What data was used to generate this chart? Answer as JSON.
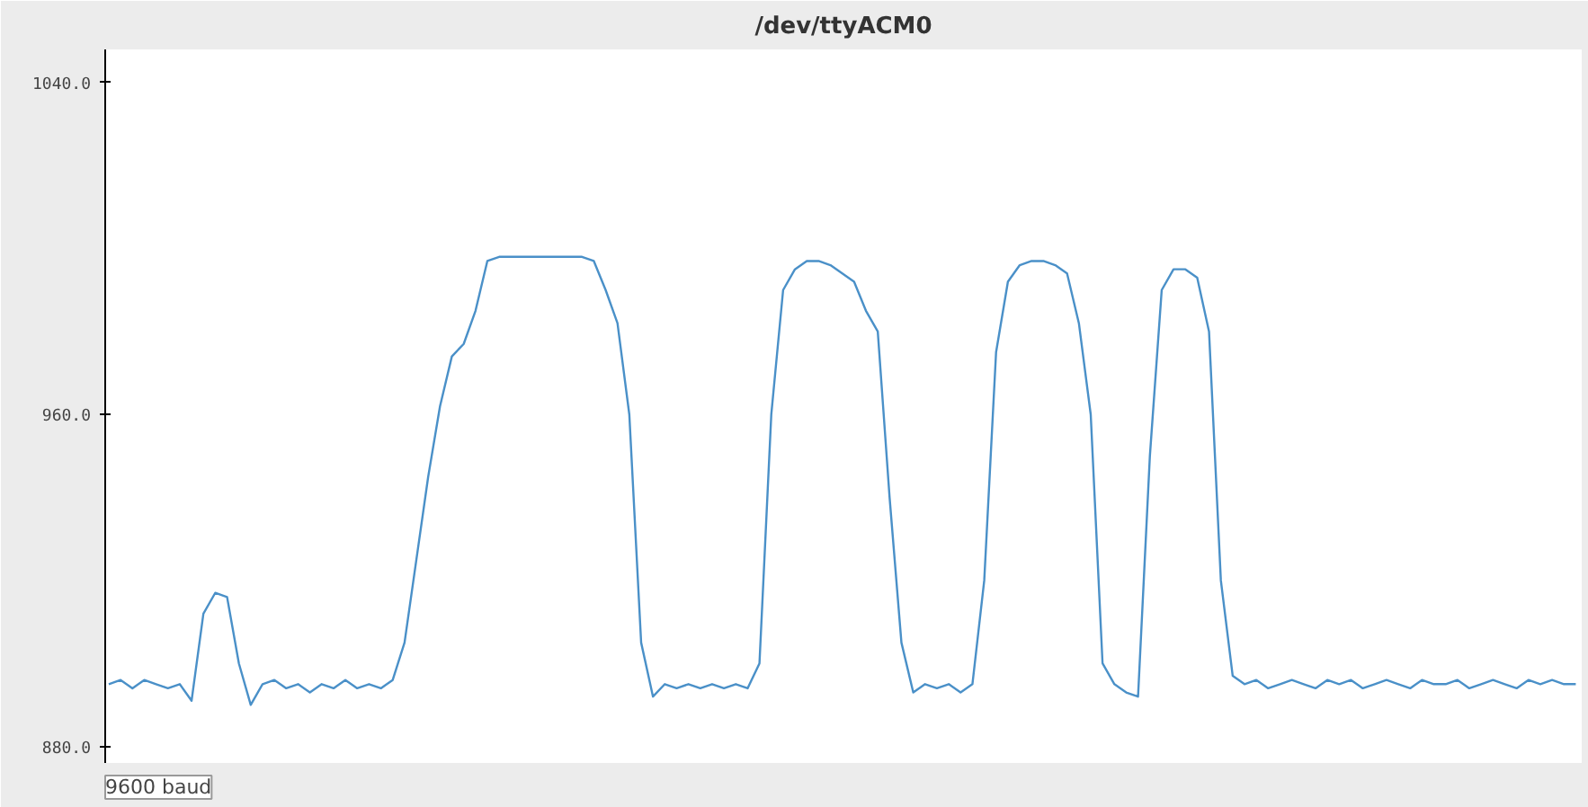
{
  "chart_data": {
    "type": "line",
    "title": "/dev/ttyACM0",
    "categories": [
      null,
      null,
      null,
      null,
      null,
      null,
      null,
      null,
      null,
      null,
      null,
      null,
      null,
      null,
      null,
      null,
      null,
      null,
      null,
      null,
      null,
      null,
      null,
      null,
      null,
      null,
      null,
      null,
      null,
      null,
      null,
      null,
      null,
      null,
      null,
      null,
      null,
      null,
      null,
      null,
      null,
      null,
      null,
      null,
      null,
      null,
      null,
      null,
      null,
      null,
      null,
      null,
      null,
      null,
      null,
      null,
      null,
      null,
      null,
      null,
      null,
      null,
      null,
      null,
      null,
      null,
      null,
      null,
      null,
      null,
      null,
      null,
      null,
      null,
      null,
      null,
      null,
      null,
      null,
      null,
      null,
      null,
      null,
      null,
      null,
      null,
      null,
      null,
      null,
      null,
      null,
      null,
      null,
      null,
      null,
      null,
      null,
      null,
      null,
      null,
      null,
      null,
      null,
      null,
      null,
      null,
      null,
      null,
      null,
      null,
      null,
      null,
      null,
      null,
      null,
      null,
      null,
      null,
      null,
      null,
      null,
      null,
      null,
      null,
      null
    ],
    "series": [
      {
        "color": "#4a90c8",
        "values": [
          895,
          896,
          894,
          896,
          895,
          894,
          895,
          891,
          912,
          917,
          916,
          900,
          890,
          895,
          896,
          894,
          895,
          893,
          895,
          894,
          896,
          894,
          895,
          894,
          896,
          905,
          925,
          945,
          962,
          974,
          977,
          985,
          997,
          998,
          998,
          998,
          998,
          998,
          998,
          998,
          998,
          997,
          990,
          982,
          960,
          905,
          892,
          895,
          894,
          895,
          894,
          895,
          894,
          895,
          894,
          900,
          960,
          990,
          995,
          997,
          997,
          996,
          994,
          992,
          985,
          980,
          940,
          905,
          893,
          895,
          894,
          895,
          893,
          895,
          920,
          975,
          992,
          996,
          997,
          997,
          996,
          994,
          982,
          960,
          900,
          895,
          893,
          892,
          950,
          990,
          995,
          995,
          993,
          980,
          920,
          897,
          895,
          896,
          894,
          895,
          896,
          895,
          894,
          896,
          895,
          896,
          894,
          895,
          896,
          895,
          894,
          896,
          895,
          895,
          896,
          894,
          895,
          896,
          895,
          894,
          896,
          895,
          896,
          895,
          895
        ]
      }
    ],
    "ylim": [
      876,
      1048
    ],
    "yticks": [
      {
        "value": 880,
        "label": "880.0"
      },
      {
        "value": 960,
        "label": "960.0"
      },
      {
        "value": 1040,
        "label": "1040.0"
      }
    ],
    "tick_labels": "y",
    "grid": false,
    "marker": "none",
    "line_style": "solid",
    "annotations": [
      "9600 baud"
    ]
  }
}
